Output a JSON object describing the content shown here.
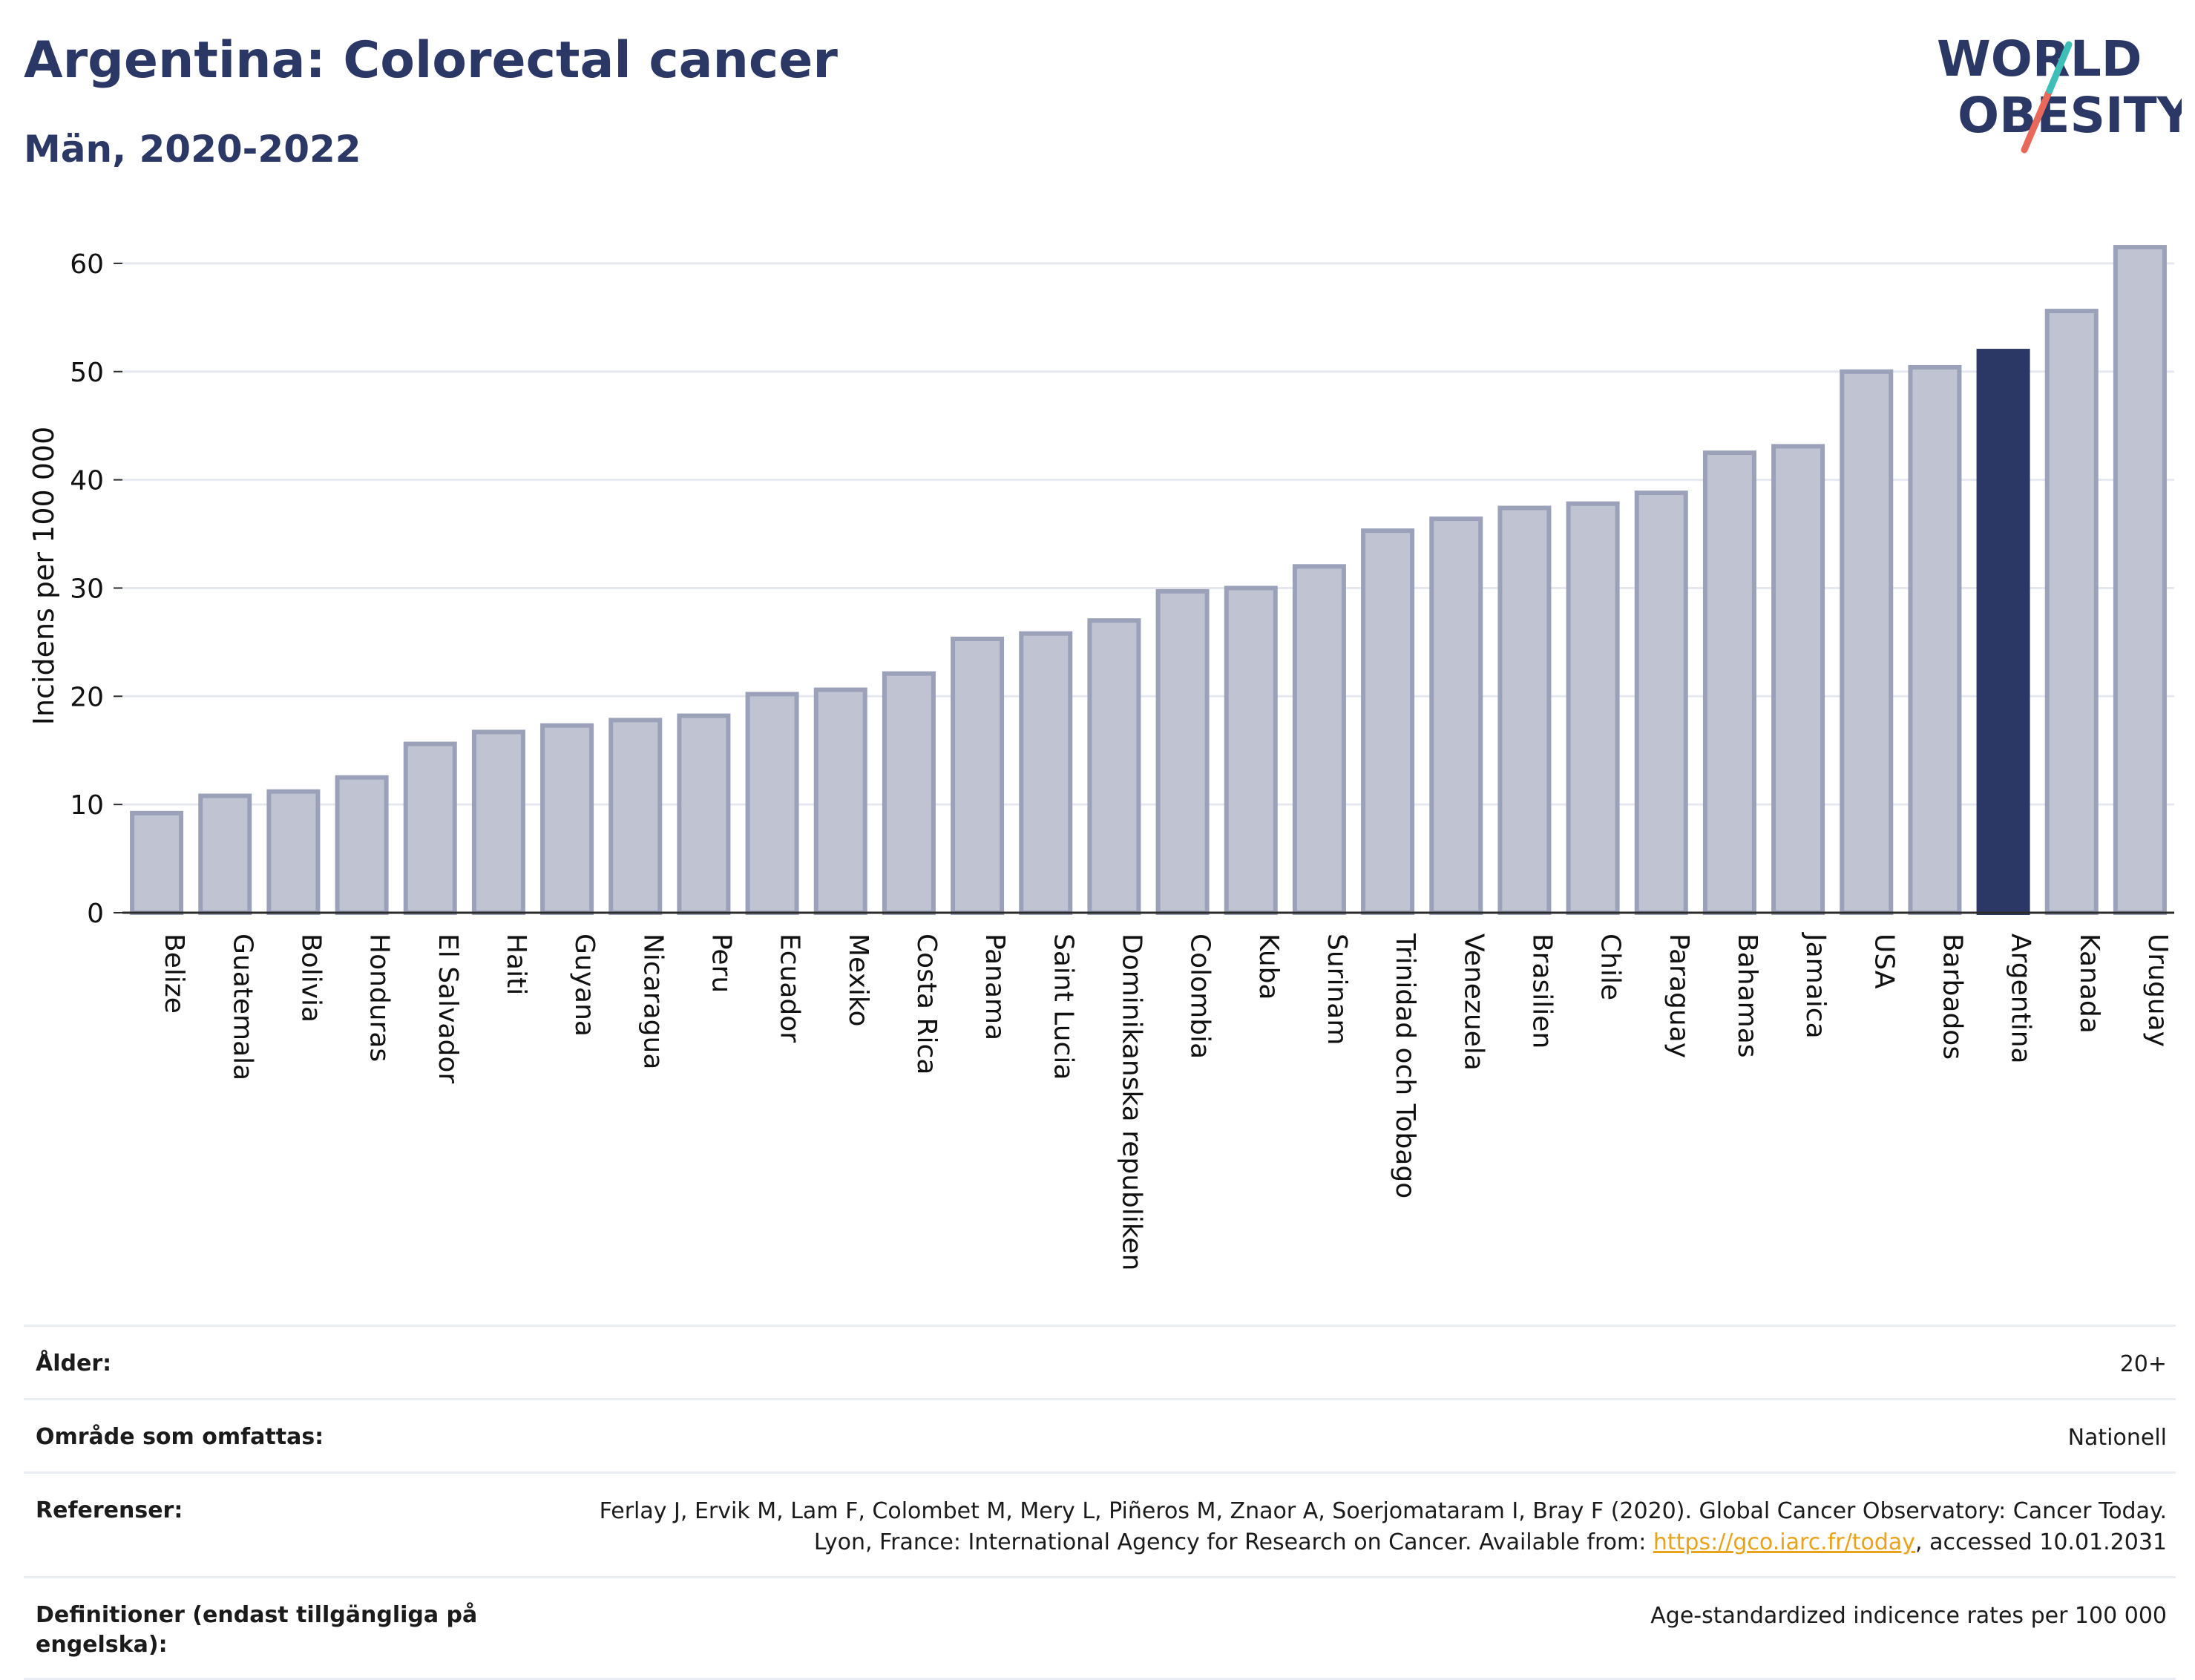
{
  "header": {
    "title": "Argentina: Colorectal cancer",
    "subtitle": "Män, 2020-2022"
  },
  "logo": {
    "line1": "WORLD",
    "line2": "OBESITY",
    "colors": {
      "text": "#2b3764",
      "slash_red": "#e8685a",
      "slash_teal": "#3dbfb8"
    }
  },
  "colors": {
    "bar": "#c0c4d2",
    "bar_border": "#9aa1b9",
    "highlight": "#2b3764",
    "grid": "#e6e8ef",
    "axis": "#2b2b2b"
  },
  "chart_data": {
    "type": "bar",
    "ylabel": "Incidens per 100 000",
    "xlabel": "",
    "ylim": [
      0,
      65
    ],
    "yticks": [
      0,
      10,
      20,
      30,
      40,
      50,
      60
    ],
    "grid": true,
    "highlight": "Argentina",
    "categories": [
      "Belize",
      "Guatemala",
      "Bolivia",
      "Honduras",
      "El Salvador",
      "Haiti",
      "Guyana",
      "Nicaragua",
      "Peru",
      "Ecuador",
      "Mexiko",
      "Costa Rica",
      "Panama",
      "Saint Lucia",
      "Dominikanska republiken",
      "Colombia",
      "Kuba",
      "Surinam",
      "Trinidad och Tobago",
      "Venezuela",
      "Brasilien",
      "Chile",
      "Paraguay",
      "Bahamas",
      "Jamaica",
      "USA",
      "Barbados",
      "Argentina",
      "Kanada",
      "Uruguay"
    ],
    "values": [
      9.2,
      10.8,
      11.2,
      12.5,
      15.6,
      16.7,
      17.3,
      17.8,
      18.2,
      20.2,
      20.6,
      22.1,
      25.3,
      25.8,
      27.0,
      29.7,
      30.0,
      32.0,
      35.3,
      36.4,
      37.4,
      37.8,
      38.8,
      42.5,
      43.1,
      50.0,
      50.4,
      51.9,
      55.6,
      61.5
    ]
  },
  "info_table": [
    {
      "label": "Ålder:",
      "value": "20+"
    },
    {
      "label": "Område som omfattas:",
      "value": "Nationell"
    },
    {
      "label": "Referenser:",
      "value_before": "Ferlay J, Ervik M, Lam F, Colombet M, Mery L, Piñeros M, Znaor A, Soerjomataram I, Bray F (2020). Global Cancer Observatory: Cancer Today. Lyon, France: International Agency for Research on Cancer. Available from: ",
      "link": "https://gco.iarc.fr/today",
      "value_after": ", accessed 10.01.2031"
    },
    {
      "label": "Definitioner (endast tillgängliga på engelska):",
      "value": "Age-standardized indicence rates per 100 000"
    }
  ]
}
